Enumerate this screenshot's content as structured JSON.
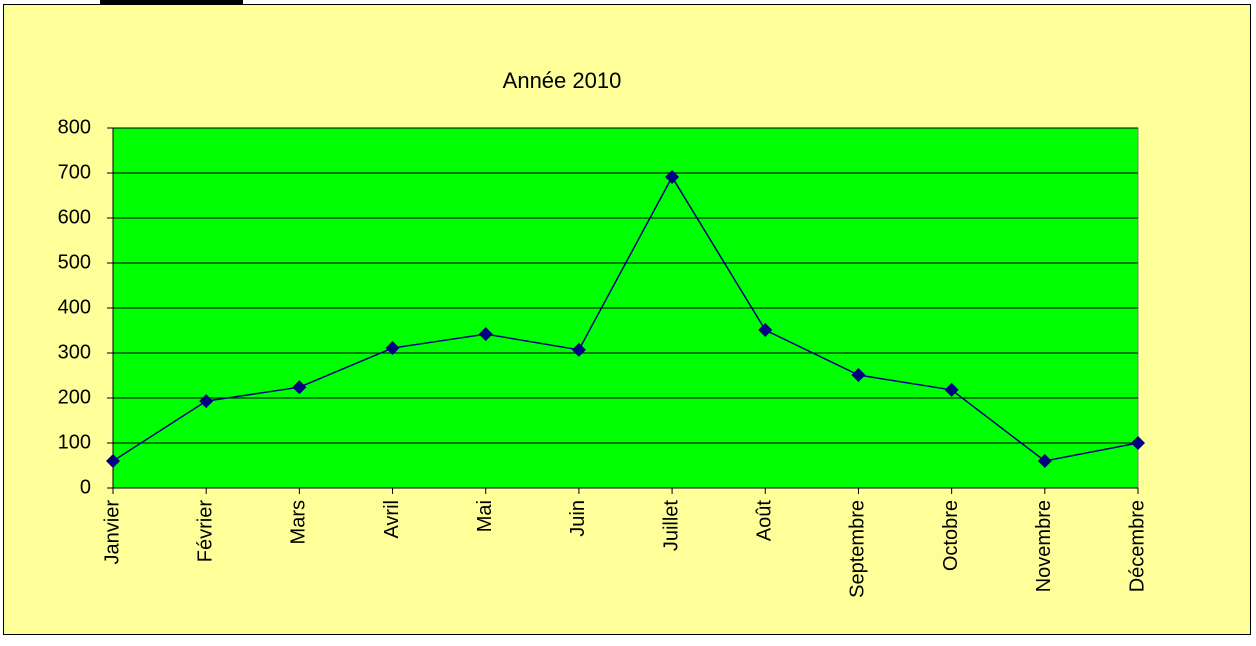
{
  "chart_data": {
    "type": "line",
    "title": "Année 2010",
    "categories": [
      "Janvier",
      "Février",
      "Mars",
      "Avril",
      "Mai",
      "Juin",
      "Juillet",
      "Août",
      "Septembre",
      "Octobre",
      "Novembre",
      "Décembre"
    ],
    "values": [
      60,
      193,
      224,
      311,
      342,
      307,
      691,
      351,
      251,
      218,
      60,
      100
    ],
    "color": "#000080",
    "plot_color": "#00ff00",
    "background": "#ffff99",
    "ylim": [
      0,
      800
    ],
    "yticks": [
      0,
      100,
      200,
      300,
      400,
      500,
      600,
      700,
      800
    ],
    "grid": true
  }
}
